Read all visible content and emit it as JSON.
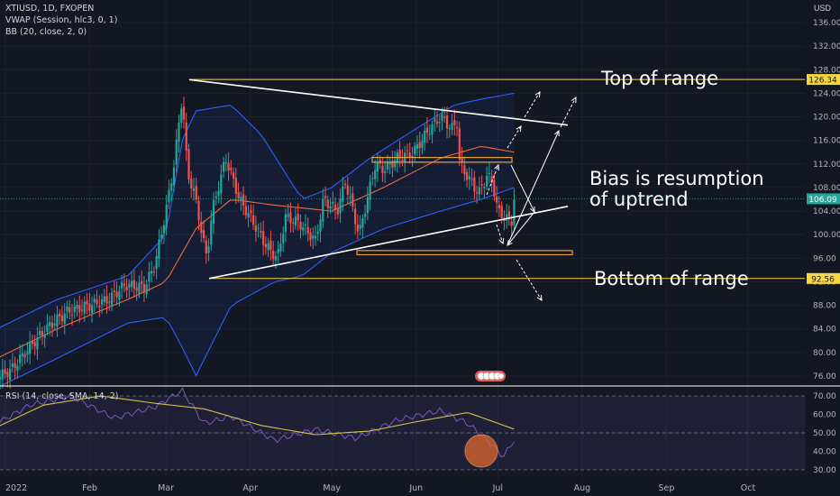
{
  "legend": {
    "symbol": "XTIUSD, 1D, FXOPEN",
    "vwap": "VWAP (Session, hlc3, 0, 1)",
    "bb": "BB (20, close, 2, 0)",
    "rsi": "RSI (14, close, SMA, 14, 2)"
  },
  "currency_label": "USD",
  "annotations": {
    "top": "Top of range",
    "bias_line1": "Bias is resumption",
    "bias_line2": "of uptrend",
    "bottom": "Bottom of range"
  },
  "colors": {
    "background": "#131722",
    "up": "#26a69a",
    "down": "#ef5350",
    "bb_band": "#2962ff",
    "bb_basis": "#f06a3a",
    "rsi_line": "#7e57c2",
    "rsi_ma": "#d6c24a",
    "level_line": "#f5d742",
    "trendline": "#ffffff",
    "price_tag": "#26a69a",
    "level_tag": "#f5d742"
  },
  "chart_data": [
    {
      "type": "candlestick",
      "y_axis": {
        "ticks": [
          "76.00",
          "80.00",
          "84.00",
          "88.00",
          "92.00",
          "96.00",
          "100.00",
          "104.00",
          "108.00",
          "112.00",
          "116.00",
          "120.00",
          "124.00",
          "128.00",
          "132.00",
          "136.00"
        ],
        "ylim": [
          74,
          139
        ],
        "labels": {
          "top_level": "126.34",
          "last_price": "106.09",
          "bottom_level": "92.56"
        },
        "values": {
          "top_level": 126.34,
          "last_price": 106.09,
          "bottom_level": 92.56
        }
      },
      "x_axis": {
        "ticks": [
          "2022",
          "Feb",
          "Mar",
          "Apr",
          "May",
          "Jun",
          "Jul",
          "Aug",
          "Sep",
          "Oct"
        ],
        "dates": [
          "2022-01-01",
          "2022-02-01",
          "2022-03-01",
          "2022-04-01",
          "2022-05-01",
          "2022-06-01",
          "2022-07-01",
          "2022-08-01",
          "2022-09-01",
          "2022-10-01"
        ]
      },
      "price_path": [
        [
          "2021-12-20",
          73.5
        ],
        [
          "2022-01-03",
          77
        ],
        [
          "2022-01-10",
          81
        ],
        [
          "2022-01-17",
          84.5
        ],
        [
          "2022-01-24",
          87
        ],
        [
          "2022-02-01",
          88
        ],
        [
          "2022-02-08",
          89
        ],
        [
          "2022-02-14",
          91.5
        ],
        [
          "2022-02-21",
          91
        ],
        [
          "2022-02-25",
          95
        ],
        [
          "2022-03-01",
          104
        ],
        [
          "2022-03-04",
          112
        ],
        [
          "2022-03-07",
          123.5
        ],
        [
          "2022-03-09",
          110
        ],
        [
          "2022-03-11",
          108
        ],
        [
          "2022-03-16",
          96
        ],
        [
          "2022-03-18",
          104
        ],
        [
          "2022-03-23",
          113
        ],
        [
          "2022-03-28",
          106
        ],
        [
          "2022-04-01",
          103
        ],
        [
          "2022-04-07",
          98
        ],
        [
          "2022-04-11",
          96
        ],
        [
          "2022-04-14",
          103
        ],
        [
          "2022-04-19",
          102
        ],
        [
          "2022-04-25",
          99
        ],
        [
          "2022-04-28",
          106
        ],
        [
          "2022-05-03",
          104
        ],
        [
          "2022-05-06",
          109
        ],
        [
          "2022-05-11",
          100
        ],
        [
          "2022-05-17",
          112
        ],
        [
          "2022-05-20",
          111
        ],
        [
          "2022-05-25",
          113
        ],
        [
          "2022-05-31",
          114
        ],
        [
          "2022-06-06",
          118
        ],
        [
          "2022-06-10",
          120
        ],
        [
          "2022-06-14",
          118
        ],
        [
          "2022-06-16",
          119
        ],
        [
          "2022-06-17",
          112
        ],
        [
          "2022-06-21",
          109
        ],
        [
          "2022-06-24",
          107
        ],
        [
          "2022-06-27",
          110
        ],
        [
          "2022-06-29",
          109
        ],
        [
          "2022-07-01",
          104
        ],
        [
          "2022-07-06",
          102
        ],
        [
          "2022-07-07",
          106.09
        ]
      ],
      "bollinger": {
        "upper": [
          [
            "2021-12-20",
            82
          ],
          [
            "2022-01-20",
            89
          ],
          [
            "2022-02-15",
            93
          ],
          [
            "2022-03-01",
            100
          ],
          [
            "2022-03-07",
            116
          ],
          [
            "2022-03-12",
            121
          ],
          [
            "2022-03-25",
            122
          ],
          [
            "2022-04-05",
            117
          ],
          [
            "2022-04-20",
            106
          ],
          [
            "2022-05-01",
            108
          ],
          [
            "2022-05-15",
            113
          ],
          [
            "2022-06-01",
            118
          ],
          [
            "2022-06-15",
            122
          ],
          [
            "2022-06-25",
            123
          ],
          [
            "2022-07-07",
            124
          ]
        ],
        "basis": [
          [
            "2021-12-20",
            77
          ],
          [
            "2022-01-20",
            84
          ],
          [
            "2022-02-15",
            89
          ],
          [
            "2022-03-01",
            92
          ],
          [
            "2022-03-12",
            101
          ],
          [
            "2022-03-25",
            106
          ],
          [
            "2022-04-10",
            105
          ],
          [
            "2022-05-01",
            104
          ],
          [
            "2022-05-20",
            108
          ],
          [
            "2022-06-10",
            113
          ],
          [
            "2022-06-25",
            115
          ],
          [
            "2022-07-07",
            114
          ]
        ],
        "lower": [
          [
            "2021-12-20",
            72
          ],
          [
            "2022-01-20",
            79
          ],
          [
            "2022-02-15",
            85
          ],
          [
            "2022-03-01",
            86
          ],
          [
            "2022-03-08",
            80
          ],
          [
            "2022-03-12",
            76
          ],
          [
            "2022-03-25",
            88
          ],
          [
            "2022-04-10",
            92
          ],
          [
            "2022-04-20",
            93
          ],
          [
            "2022-05-01",
            97
          ],
          [
            "2022-05-20",
            101
          ],
          [
            "2022-06-10",
            104
          ],
          [
            "2022-06-25",
            106
          ],
          [
            "2022-07-07",
            108
          ]
        ]
      }
    },
    {
      "type": "line",
      "title": "RSI (14, close, SMA, 14, 2)",
      "y_axis": {
        "ticks": [
          "30.00",
          "40.00",
          "50.00",
          "60.00",
          "70.00"
        ],
        "ylim": [
          27,
          73
        ]
      },
      "series": [
        {
          "name": "RSI",
          "values": [
            [
              "2021-12-20",
              48
            ],
            [
              "2022-01-10",
              65
            ],
            [
              "2022-01-25",
              70
            ],
            [
              "2022-02-10",
              58
            ],
            [
              "2022-02-25",
              64
            ],
            [
              "2022-03-07",
              73
            ],
            [
              "2022-03-15",
              55
            ],
            [
              "2022-03-25",
              59
            ],
            [
              "2022-04-10",
              46
            ],
            [
              "2022-04-25",
              52
            ],
            [
              "2022-05-10",
              47
            ],
            [
              "2022-05-25",
              57
            ],
            [
              "2022-06-10",
              62
            ],
            [
              "2022-06-20",
              55
            ],
            [
              "2022-06-28",
              45
            ],
            [
              "2022-07-03",
              37
            ],
            [
              "2022-07-07",
              46
            ]
          ]
        },
        {
          "name": "RSI-based MA",
          "values": [
            [
              "2021-12-20",
              47
            ],
            [
              "2022-01-15",
              65
            ],
            [
              "2022-02-05",
              70
            ],
            [
              "2022-02-25",
              66
            ],
            [
              "2022-03-15",
              63
            ],
            [
              "2022-04-05",
              54
            ],
            [
              "2022-04-25",
              49
            ],
            [
              "2022-05-15",
              51
            ],
            [
              "2022-06-01",
              56
            ],
            [
              "2022-06-20",
              61
            ],
            [
              "2022-07-07",
              52
            ]
          ]
        }
      ]
    }
  ]
}
